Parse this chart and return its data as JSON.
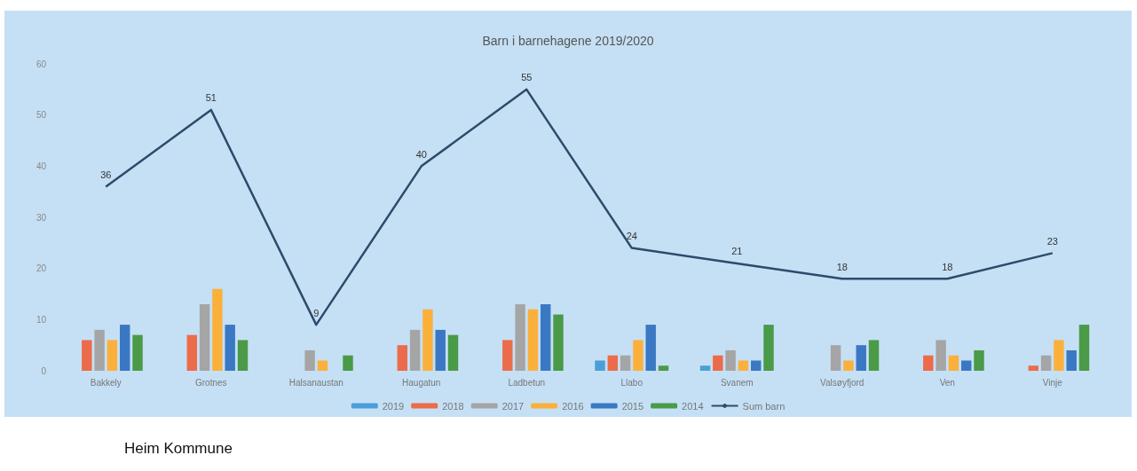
{
  "chart_data": {
    "type": "bar",
    "title": "Barn i barnehagene 2019/2020",
    "categories": [
      "Bakkely",
      "Grotnes",
      "Halsanaustan",
      "Haugatun",
      "Ladbetun",
      "Llabo",
      "Svanem",
      "Valsøyfjord",
      "Ven",
      "Vinje"
    ],
    "series": [
      {
        "name": "2019",
        "color": "#4a9fd8",
        "values": [
          null,
          null,
          null,
          null,
          null,
          2,
          1,
          null,
          null,
          null
        ]
      },
      {
        "name": "2018",
        "color": "#ec6b4a",
        "values": [
          6,
          7,
          null,
          5,
          6,
          3,
          3,
          null,
          3,
          1
        ]
      },
      {
        "name": "2017",
        "color": "#a5a5a5",
        "values": [
          8,
          13,
          4,
          8,
          13,
          3,
          4,
          5,
          6,
          3
        ]
      },
      {
        "name": "2016",
        "color": "#fbb03b",
        "values": [
          6,
          16,
          2,
          12,
          12,
          6,
          2,
          2,
          3,
          6
        ]
      },
      {
        "name": "2015",
        "color": "#3a78c3",
        "values": [
          9,
          9,
          null,
          8,
          13,
          9,
          2,
          5,
          2,
          4
        ]
      },
      {
        "name": "2014",
        "color": "#4a9a48",
        "values": [
          7,
          6,
          3,
          7,
          11,
          1,
          9,
          6,
          4,
          9
        ]
      },
      {
        "name": "Sum barn",
        "type": "line",
        "color": "#2e4a6b",
        "values": [
          36,
          51,
          9,
          40,
          55,
          24,
          21,
          18,
          18,
          23
        ],
        "value_labels": [
          "36",
          "51",
          "9",
          "40",
          "55",
          "24",
          "21",
          "18",
          "18",
          "23"
        ]
      }
    ],
    "ylim": [
      0,
      60
    ],
    "yticks": [
      0,
      10,
      20,
      30,
      40,
      50,
      60
    ],
    "grid": false,
    "legend": "bottom",
    "marker": "none",
    "annotations": [
      "Heim Kommune"
    ]
  }
}
